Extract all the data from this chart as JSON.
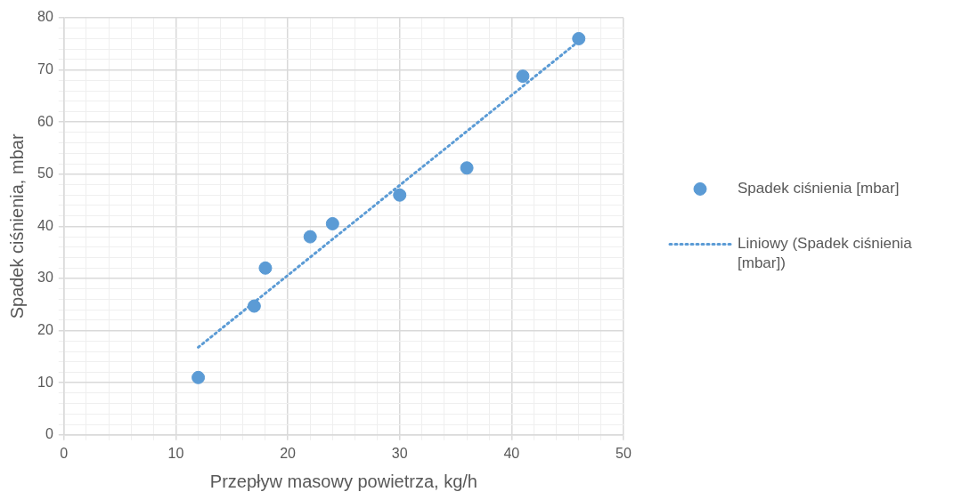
{
  "chart_data": {
    "type": "scatter",
    "xlabel": "Przepływ masowy powietrza, kg/h",
    "ylabel": "Spadek ciśnienia, mbar",
    "series": [
      {
        "name": "Spadek ciśnienia [mbar]",
        "color": "#5b9bd5",
        "marker": "circle",
        "x": [
          12,
          17,
          18,
          22,
          24,
          30,
          36,
          41,
          46
        ],
        "values": [
          11,
          24.7,
          32,
          38,
          40.5,
          46,
          51.2,
          68.8,
          76
        ]
      },
      {
        "name": "Liniowy (Spadek ciśnienia [mbar])",
        "type": "line",
        "color": "#5b9bd5",
        "line_style": "dotted",
        "marker": "none",
        "x": [
          12,
          46
        ],
        "values": [
          16.8,
          75.5
        ]
      }
    ],
    "xlim": [
      0,
      50
    ],
    "ylim": [
      0,
      80
    ],
    "xticks": [
      0,
      {
        "value": 2,
        "label": null
      },
      {
        "value": 4,
        "label": null
      },
      {
        "value": 6,
        "label": null
      },
      {
        "value": 8,
        "label": null
      },
      10,
      {
        "value": 12,
        "label": null
      },
      {
        "value": 14,
        "label": null
      },
      {
        "value": 16,
        "label": null
      },
      {
        "value": 18,
        "label": null
      },
      20,
      {
        "value": 22,
        "label": null
      },
      {
        "value": 24,
        "label": null
      },
      {
        "value": 26,
        "label": null
      },
      {
        "value": 28,
        "label": null
      },
      30,
      {
        "value": 32,
        "label": null
      },
      {
        "value": 34,
        "label": null
      },
      {
        "value": 36,
        "label": null
      },
      {
        "value": 38,
        "label": null
      },
      40,
      {
        "value": 42,
        "label": null
      },
      {
        "value": 44,
        "label": null
      },
      {
        "value": 46,
        "label": null
      },
      {
        "value": 48,
        "label": null
      },
      50
    ],
    "yticks": [
      0,
      {
        "value": 2,
        "label": null
      },
      {
        "value": 4,
        "label": null
      },
      {
        "value": 6,
        "label": null
      },
      {
        "value": 8,
        "label": null
      },
      10,
      {
        "value": 12,
        "label": null
      },
      {
        "value": 14,
        "label": null
      },
      {
        "value": 16,
        "label": null
      },
      {
        "value": 18,
        "label": null
      },
      20,
      {
        "value": 22,
        "label": null
      },
      {
        "value": 24,
        "label": null
      },
      {
        "value": 26,
        "label": null
      },
      {
        "value": 28,
        "label": null
      },
      30,
      {
        "value": 32,
        "label": null
      },
      {
        "value": 34,
        "label": null
      },
      {
        "value": 36,
        "label": null
      },
      {
        "value": 38,
        "label": null
      },
      40,
      {
        "value": 42,
        "label": null
      },
      {
        "value": 44,
        "label": null
      },
      {
        "value": 46,
        "label": null
      },
      {
        "value": 48,
        "label": null
      },
      50,
      {
        "value": 52,
        "label": null
      },
      {
        "value": 54,
        "label": null
      },
      {
        "value": 56,
        "label": null
      },
      {
        "value": 58,
        "label": null
      },
      60,
      {
        "value": 62,
        "label": null
      },
      {
        "value": 64,
        "label": null
      },
      {
        "value": 66,
        "label": null
      },
      {
        "value": 68,
        "label": null
      },
      70,
      {
        "value": 72,
        "label": null
      },
      {
        "value": 74,
        "label": null
      },
      {
        "value": 76,
        "label": null
      },
      {
        "value": 78,
        "label": null
      },
      80
    ],
    "grid": true,
    "legend": "right"
  }
}
